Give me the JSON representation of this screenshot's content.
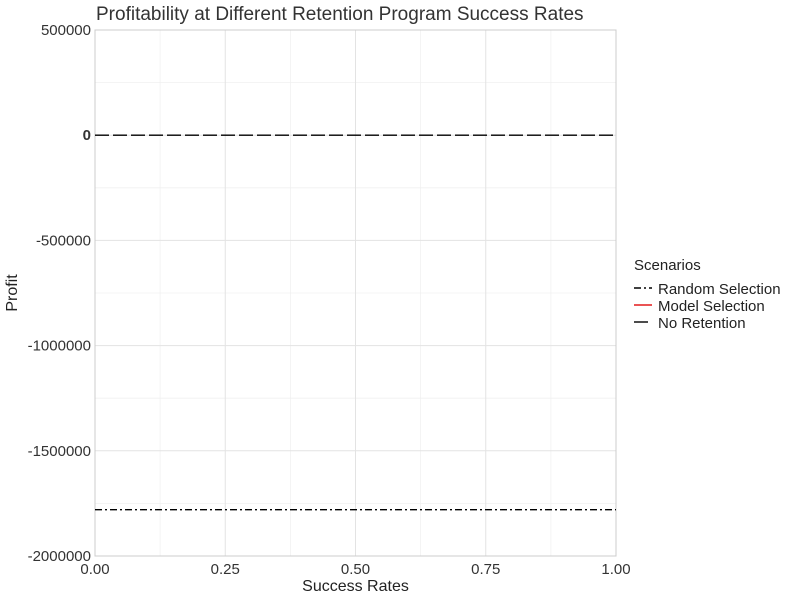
{
  "chart_data": {
    "type": "line",
    "title": "Profitability at Different Retention Program Success Rates",
    "xlabel": "Success Rates",
    "ylabel": "Profit",
    "xlim": [
      0,
      1
    ],
    "ylim": [
      -2000000,
      500000
    ],
    "x_ticks": [
      0,
      0.25,
      0.5,
      0.75,
      1
    ],
    "x_tick_labels": [
      "0.00",
      "0.25",
      "0.50",
      "0.75",
      "1.00"
    ],
    "y_ticks": [
      -2000000,
      -1500000,
      -1000000,
      -500000,
      0,
      500000
    ],
    "y_tick_labels": [
      "-2000000",
      "-1500000",
      "-1000000",
      "-500000",
      "0",
      "500000"
    ],
    "grid": true,
    "legend": {
      "title": "Scenarios",
      "placement": "right"
    },
    "series": [
      {
        "name": "Random Selection",
        "color": "#000000",
        "line_style": "dotdash",
        "x": [
          0,
          1
        ],
        "values": [
          -1780000,
          -1780000
        ]
      },
      {
        "name": "Model Selection",
        "color": "#e41a1c",
        "line_style": "solid",
        "x": [],
        "values": []
      },
      {
        "name": "No Retention",
        "color": "#000000",
        "line_style": "longdash",
        "x": [
          0,
          1
        ],
        "values": [
          0,
          0
        ]
      }
    ]
  }
}
